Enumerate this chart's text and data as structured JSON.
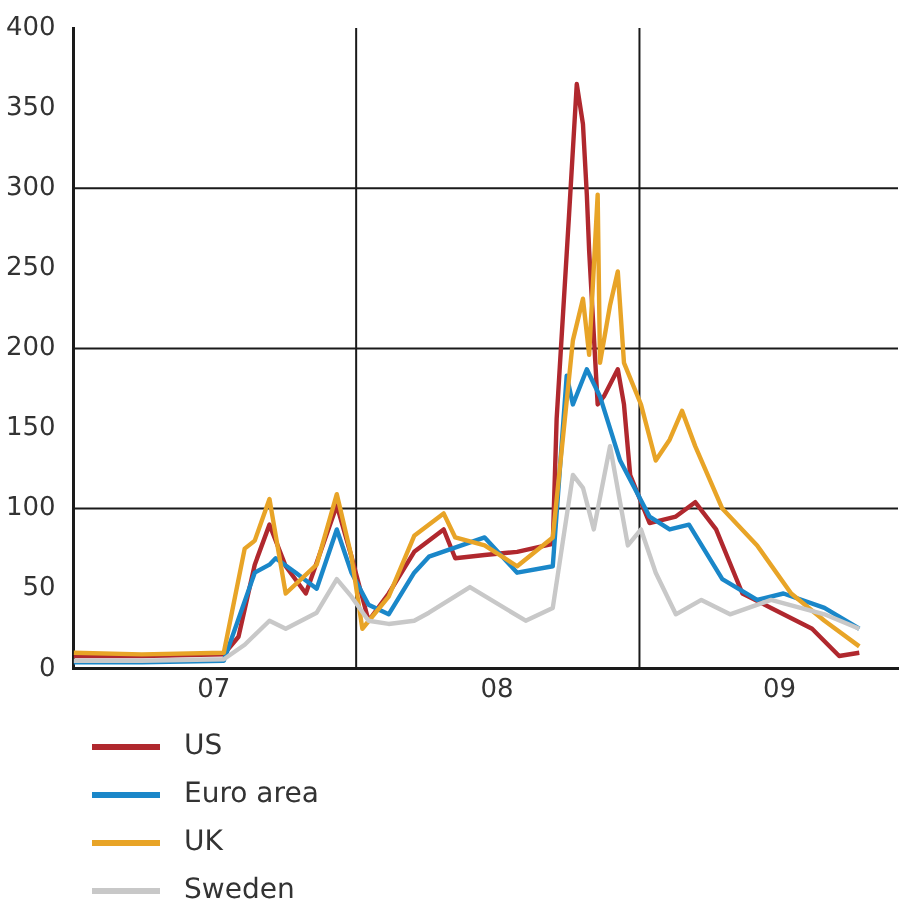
{
  "chart_data": {
    "type": "line",
    "xlim": [
      "2007-01-01",
      "2009-12-01"
    ],
    "ylim": [
      0,
      400
    ],
    "yticks": [
      0,
      50,
      100,
      150,
      200,
      250,
      300,
      350,
      400
    ],
    "xticks": [
      {
        "value": "2007-07-01",
        "label": "07"
      },
      {
        "value": "2008-07-01",
        "label": "08"
      },
      {
        "value": "2009-07-01",
        "label": "09"
      }
    ],
    "grid": false,
    "legend": "bottom left",
    "marker": "none",
    "line_style": "solid",
    "ref_lines": [
      {
        "axis": "x",
        "value": "2008-01-01",
        "color": "#1a1a1a"
      },
      {
        "axis": "x",
        "value": "2009-01-01",
        "color": "#1a1a1a"
      },
      {
        "axis": "y",
        "value": 100,
        "color": "#1a1a1a"
      },
      {
        "axis": "y",
        "value": 200,
        "color": "#1a1a1a"
      },
      {
        "axis": "y",
        "value": 300,
        "color": "#1a1a1a"
      }
    ],
    "series": [
      {
        "name": "Sweden",
        "color": "#c8c8c8",
        "x": [
          "2007-01-01",
          "2007-03-30",
          "2007-07-14",
          "2007-08-10",
          "2007-09-11",
          "2007-10-02",
          "2007-11-11",
          "2007-12-07",
          "2007-12-26",
          "2008-01-17",
          "2008-02-12",
          "2008-03-16",
          "2008-04-04",
          "2008-05-27",
          "2008-08-07",
          "2008-09-11",
          "2008-10-07",
          "2008-10-20",
          "2008-11-03",
          "2008-11-24",
          "2008-12-17",
          "2009-01-03",
          "2009-01-22",
          "2009-02-17",
          "2009-03-22",
          "2009-04-28",
          "2009-06-20",
          "2009-08-28",
          "2009-10-12"
        ],
        "values": [
          5,
          5,
          6,
          15,
          30,
          25,
          35,
          56,
          45,
          30,
          28,
          30,
          35,
          51,
          30,
          38,
          121,
          113,
          87,
          139,
          77,
          87,
          60,
          34,
          43,
          34,
          43,
          34,
          25
        ]
      },
      {
        "name": "UK",
        "color": "#e8a427",
        "x": [
          "2007-01-01",
          "2007-03-30",
          "2007-07-14",
          "2007-08-10",
          "2007-08-23",
          "2007-09-11",
          "2007-10-02",
          "2007-11-11",
          "2007-12-07",
          "2007-12-26",
          "2008-01-09",
          "2008-02-12",
          "2008-03-16",
          "2008-04-23",
          "2008-05-08",
          "2008-06-15",
          "2008-07-27",
          "2008-09-11",
          "2008-10-07",
          "2008-10-20",
          "2008-10-28",
          "2008-11-08",
          "2008-11-11",
          "2008-11-24",
          "2008-12-04",
          "2008-12-12",
          "2009-01-03",
          "2009-01-22",
          "2009-02-09",
          "2009-02-25",
          "2009-03-14",
          "2009-04-18",
          "2009-06-02",
          "2009-07-16",
          "2009-08-28",
          "2009-10-12"
        ],
        "values": [
          10,
          9,
          10,
          75,
          80,
          106,
          47,
          65,
          109,
          70,
          25,
          45,
          83,
          97,
          82,
          77,
          64,
          82,
          205,
          231,
          196,
          296,
          191,
          227,
          248,
          191,
          165,
          130,
          143,
          161,
          139,
          100,
          77,
          47,
          30,
          14
        ]
      },
      {
        "name": "Euro area",
        "color": "#1a87c9",
        "x": [
          "2007-01-01",
          "2007-03-30",
          "2007-07-14",
          "2007-08-23",
          "2007-09-11",
          "2007-09-19",
          "2007-10-15",
          "2007-11-11",
          "2007-12-07",
          "2007-12-26",
          "2008-01-17",
          "2008-02-12",
          "2008-03-16",
          "2008-04-04",
          "2008-06-15",
          "2008-07-27",
          "2008-09-11",
          "2008-09-29",
          "2008-10-07",
          "2008-10-25",
          "2008-11-11",
          "2008-12-07",
          "2009-01-14",
          "2009-02-09",
          "2009-03-06",
          "2009-04-18",
          "2009-06-02",
          "2009-07-06",
          "2009-08-28",
          "2009-10-12"
        ],
        "values": [
          4,
          4,
          5,
          60,
          65,
          69,
          60,
          50,
          87,
          60,
          40,
          34,
          60,
          70,
          82,
          60,
          64,
          183,
          165,
          187,
          170,
          130,
          95,
          87,
          90,
          56,
          43,
          47,
          38,
          25
        ]
      },
      {
        "name": "US",
        "color": "#b0282e",
        "x": [
          "2007-01-01",
          "2007-03-30",
          "2007-07-14",
          "2007-08-02",
          "2007-08-23",
          "2007-09-11",
          "2007-10-02",
          "2007-10-28",
          "2007-12-07",
          "2007-12-26",
          "2008-01-17",
          "2008-02-12",
          "2008-03-16",
          "2008-04-23",
          "2008-05-08",
          "2008-06-15",
          "2008-07-27",
          "2008-09-11",
          "2008-09-16",
          "2008-10-02",
          "2008-10-12",
          "2008-10-20",
          "2008-10-25",
          "2008-10-28",
          "2008-11-08",
          "2008-11-16",
          "2008-12-04",
          "2008-12-12",
          "2008-12-20",
          "2009-01-14",
          "2009-02-17",
          "2009-03-14",
          "2009-04-10",
          "2009-05-14",
          "2009-06-20",
          "2009-08-12",
          "2009-09-16",
          "2009-10-12"
        ],
        "values": [
          8,
          8,
          9,
          20,
          65,
          90,
          64,
          47,
          102,
          70,
          30,
          47,
          73,
          87,
          69,
          71,
          73,
          78,
          156,
          283,
          365,
          340,
          296,
          261,
          165,
          170,
          187,
          165,
          121,
          91,
          95,
          104,
          87,
          47,
          38,
          25,
          8,
          10
        ]
      }
    ]
  }
}
